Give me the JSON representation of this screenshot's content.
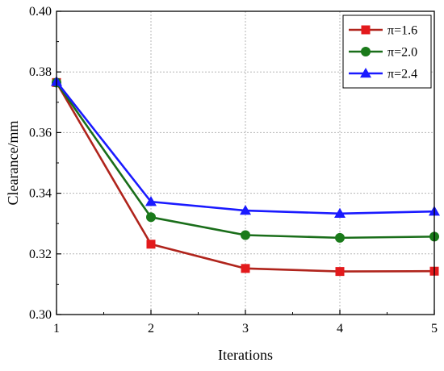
{
  "chart_data": {
    "type": "line",
    "title": "",
    "xlabel": "Iterations",
    "ylabel": "Clearance/mm",
    "xlim": [
      1,
      5
    ],
    "ylim": [
      0.3,
      0.4
    ],
    "xticks": [
      1,
      2,
      3,
      4,
      5
    ],
    "x_tick_labels": [
      "1",
      "2",
      "3",
      "4",
      "5"
    ],
    "yticks": [
      0.3,
      0.32,
      0.34,
      0.36,
      0.38,
      0.4
    ],
    "y_tick_labels": [
      "0.30",
      "0.32",
      "0.34",
      "0.36",
      "0.38",
      "0.40"
    ],
    "grid": true,
    "legend_position": "top-right",
    "x": [
      1,
      2,
      3,
      4,
      5
    ],
    "series": [
      {
        "name": "π=1.6",
        "color": "#e31a1c",
        "line_color": "#b0241c",
        "marker": "square",
        "values": [
          0.3765,
          0.3232,
          0.3152,
          0.3142,
          0.3143
        ]
      },
      {
        "name": "π=2.0",
        "color": "#1a7a1a",
        "line_color": "#1a6e1a",
        "marker": "circle",
        "values": [
          0.3765,
          0.3321,
          0.3262,
          0.3253,
          0.3257
        ]
      },
      {
        "name": "π=2.4",
        "color": "#1a1aff",
        "line_color": "#1a1aff",
        "marker": "triangle",
        "values": [
          0.3768,
          0.3372,
          0.3343,
          0.3333,
          0.334
        ]
      }
    ]
  }
}
